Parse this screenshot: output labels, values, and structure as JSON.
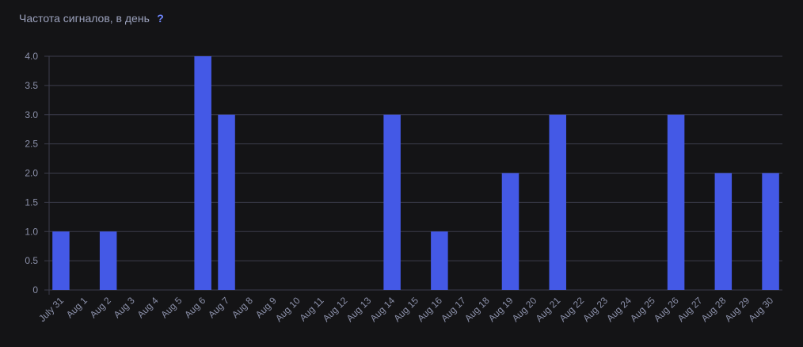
{
  "chart_data": {
    "type": "bar",
    "title": "Частота сигналов, в день",
    "subtitle": "?",
    "categories": [
      "July 31",
      "Aug 1",
      "Aug 2",
      "Aug 3",
      "Aug 4",
      "Aug 5",
      "Aug 6",
      "Aug 7",
      "Aug 8",
      "Aug 9",
      "Aug 10",
      "Aug 11",
      "Aug 12",
      "Aug 13",
      "Aug 14",
      "Aug 15",
      "Aug 16",
      "Aug 17",
      "Aug 18",
      "Aug 19",
      "Aug 20",
      "Aug 21",
      "Aug 22",
      "Aug 23",
      "Aug 24",
      "Aug 25",
      "Aug 26",
      "Aug 27",
      "Aug 28",
      "Aug 29",
      "Aug 30"
    ],
    "values": [
      1,
      0,
      1,
      0,
      0,
      0,
      4,
      3,
      0,
      0,
      0,
      0,
      0,
      0,
      3,
      0,
      1,
      0,
      0,
      2,
      0,
      3,
      0,
      0,
      0,
      0,
      3,
      0,
      2,
      0,
      2
    ],
    "color": "#4459e6",
    "ylim": [
      0,
      4
    ],
    "yticks": [
      0,
      0.5,
      {
        "value": 1,
        "label": "1.0"
      },
      1.5,
      {
        "value": 2,
        "label": "2.0"
      },
      2.5,
      {
        "value": 3,
        "label": "3.0"
      },
      3.5,
      {
        "value": 4,
        "label": "4.0"
      }
    ],
    "grid": true
  }
}
